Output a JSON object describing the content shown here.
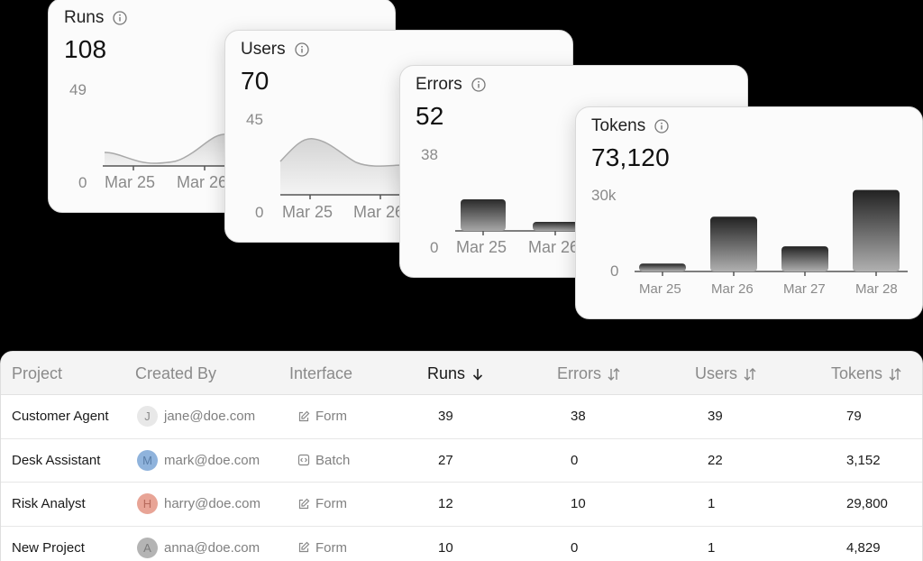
{
  "cards": {
    "runs": {
      "title": "Runs",
      "value": "108",
      "y_max_label": "49",
      "y_min_label": "0",
      "x_labels": [
        "Mar 25",
        "Mar 26"
      ]
    },
    "users": {
      "title": "Users",
      "value": "70",
      "y_max_label": "45",
      "y_min_label": "0",
      "x_labels": [
        "Mar 25",
        "Mar 26"
      ]
    },
    "errors": {
      "title": "Errors",
      "value": "52",
      "y_max_label": "38",
      "y_min_label": "0",
      "x_labels": [
        "Mar 25",
        "Mar 26"
      ]
    },
    "tokens": {
      "title": "Tokens",
      "value": "73,120",
      "y_max_label": "30k",
      "y_min_label": "0",
      "x_labels": [
        "Mar 25",
        "Mar 26",
        "Mar 27",
        "Mar 28"
      ]
    }
  },
  "chart_data": [
    {
      "type": "area",
      "title": "Runs",
      "x": [
        "Mar 25",
        "Mar 26"
      ],
      "ylim": [
        0,
        49
      ]
    },
    {
      "type": "area",
      "title": "Users",
      "x": [
        "Mar 25",
        "Mar 26"
      ],
      "ylim": [
        0,
        45
      ]
    },
    {
      "type": "bar",
      "title": "Errors",
      "categories": [
        "Mar 25",
        "Mar 26"
      ],
      "values": [
        14,
        4
      ],
      "ylim": [
        0,
        38
      ]
    },
    {
      "type": "bar",
      "title": "Tokens",
      "categories": [
        "Mar 25",
        "Mar 26",
        "Mar 27",
        "Mar 28"
      ],
      "values": [
        3000,
        20700,
        9500,
        30800
      ],
      "ylim": [
        0,
        30000
      ]
    }
  ],
  "table": {
    "headers": {
      "project": "Project",
      "created_by": "Created By",
      "interface": "Interface",
      "runs": "Runs",
      "errors": "Errors",
      "users": "Users",
      "tokens": "Tokens"
    },
    "rows": [
      {
        "project": "Customer Agent",
        "avatar": "J",
        "avatar_color": "#e8e8e8",
        "avatar_text": "#8a8a8a",
        "email": "jane@doe.com",
        "interface": "Form",
        "interface_icon": "edit-icon",
        "runs": "39",
        "errors": "38",
        "users": "39",
        "tokens": "79"
      },
      {
        "project": "Desk Assistant",
        "avatar": "M",
        "avatar_color": "#8fb3dc",
        "avatar_text": "#5a7ea8",
        "email": "mark@doe.com",
        "interface": "Batch",
        "interface_icon": "code-icon",
        "runs": "27",
        "errors": "0",
        "users": "22",
        "tokens": "3,152"
      },
      {
        "project": "Risk Analyst",
        "avatar": "H",
        "avatar_color": "#e8a496",
        "avatar_text": "#b76a5c",
        "email": "harry@doe.com",
        "interface": "Form",
        "interface_icon": "edit-icon",
        "runs": "12",
        "errors": "10",
        "users": "1",
        "tokens": "29,800"
      },
      {
        "project": "New Project",
        "avatar": "A",
        "avatar_color": "#b4b4b4",
        "avatar_text": "#7a7a7a",
        "email": "anna@doe.com",
        "interface": "Form",
        "interface_icon": "edit-icon",
        "runs": "10",
        "errors": "0",
        "users": "1",
        "tokens": "4,829"
      }
    ]
  }
}
